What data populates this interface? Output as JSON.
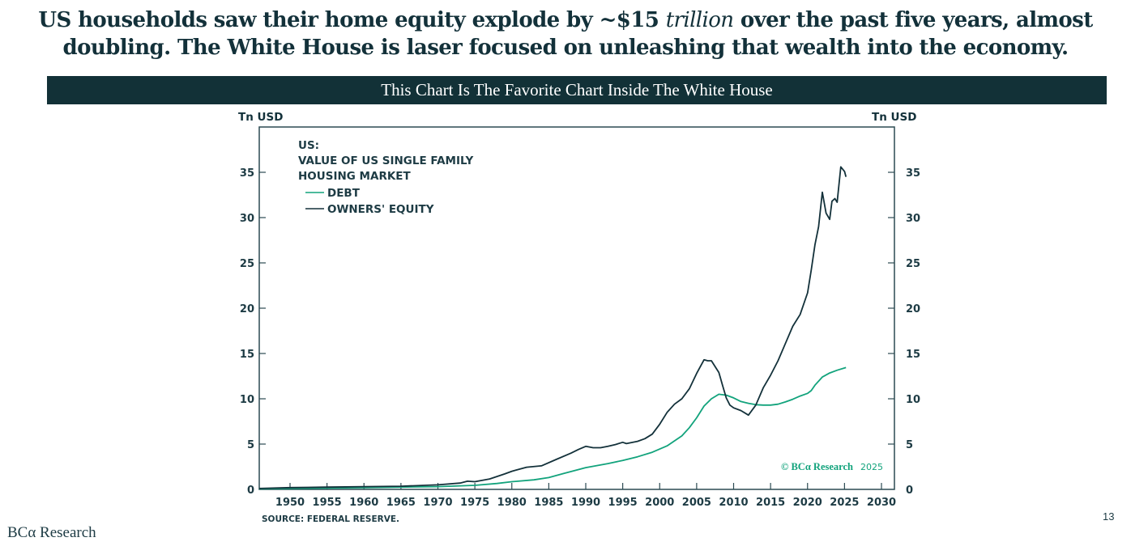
{
  "headline": {
    "line1_pre": "US households saw their home equity explode by ~$15 ",
    "line1_em": "trillion",
    "line1_post": " over the past five years, almost",
    "line2": "doubling. The White House is laser focused on unleashing that wealth into the economy."
  },
  "banner": {
    "title": "This Chart Is The Favorite Chart Inside The White House"
  },
  "footer": {
    "logo": "BCα Research",
    "page_number": "13"
  },
  "colors": {
    "debt": "#12a37c",
    "equity": "#13313a",
    "axis": "#2b4a52",
    "banner": "#123137"
  },
  "chart_data": {
    "type": "line",
    "title": "US: VALUE OF US SINGLE FAMILY HOUSING MARKET",
    "title_lines": [
      "US:",
      "VALUE OF US SINGLE FAMILY",
      "HOUSING MARKET"
    ],
    "ylabel_left": "Tn USD",
    "ylabel_right": "Tn USD",
    "xlabel": "",
    "xlim": [
      1945.8,
      2031.5
    ],
    "ylim": [
      0,
      39.5
    ],
    "x_ticks": [
      1950,
      1955,
      1960,
      1965,
      1970,
      1975,
      1980,
      1985,
      1990,
      1995,
      2000,
      2005,
      2010,
      2015,
      2020,
      2025,
      2030
    ],
    "x_tick_labels": [
      "1950",
      "1955",
      "1960",
      "1965",
      "1970",
      "1975",
      "1980",
      "1985",
      "1990",
      "1995",
      "2000",
      "2005",
      "2010",
      "2015",
      "2020",
      "2025",
      "2030"
    ],
    "y_ticks": [
      0,
      5,
      10,
      15,
      20,
      25,
      30,
      35
    ],
    "y_tick_labels": [
      "0",
      "5",
      "10",
      "15",
      "20",
      "25",
      "30",
      "35"
    ],
    "grid": false,
    "legend_position": "top-left",
    "source": "SOURCE: FEDERAL RESERVE.",
    "copyright": {
      "text": "© BCα Research",
      "year": "2025"
    },
    "series": [
      {
        "name": "DEBT",
        "color": "#12a37c",
        "points": [
          [
            1945.8,
            0.05
          ],
          [
            1950,
            0.1
          ],
          [
            1955,
            0.15
          ],
          [
            1960,
            0.2
          ],
          [
            1965,
            0.25
          ],
          [
            1970,
            0.3
          ],
          [
            1975,
            0.45
          ],
          [
            1978,
            0.65
          ],
          [
            1980,
            0.85
          ],
          [
            1983,
            1.05
          ],
          [
            1985,
            1.3
          ],
          [
            1987,
            1.75
          ],
          [
            1990,
            2.4
          ],
          [
            1993,
            2.85
          ],
          [
            1995,
            3.2
          ],
          [
            1997,
            3.6
          ],
          [
            1999,
            4.1
          ],
          [
            2001,
            4.8
          ],
          [
            2003,
            5.9
          ],
          [
            2004,
            6.8
          ],
          [
            2005,
            7.9
          ],
          [
            2006,
            9.2
          ],
          [
            2007,
            10.0
          ],
          [
            2008,
            10.5
          ],
          [
            2009,
            10.4
          ],
          [
            2010,
            10.1
          ],
          [
            2011,
            9.7
          ],
          [
            2012,
            9.5
          ],
          [
            2013,
            9.35
          ],
          [
            2014,
            9.3
          ],
          [
            2015,
            9.3
          ],
          [
            2016,
            9.4
          ],
          [
            2017,
            9.65
          ],
          [
            2018,
            9.95
          ],
          [
            2019,
            10.3
          ],
          [
            2020,
            10.6
          ],
          [
            2020.5,
            10.9
          ],
          [
            2021,
            11.5
          ],
          [
            2022,
            12.4
          ],
          [
            2023,
            12.85
          ],
          [
            2024,
            13.15
          ],
          [
            2025.2,
            13.45
          ]
        ]
      },
      {
        "name": "OWNERS' EQUITY",
        "color": "#13313a",
        "points": [
          [
            1945.8,
            0.1
          ],
          [
            1950,
            0.2
          ],
          [
            1955,
            0.25
          ],
          [
            1960,
            0.3
          ],
          [
            1965,
            0.35
          ],
          [
            1970,
            0.5
          ],
          [
            1973,
            0.7
          ],
          [
            1974,
            0.9
          ],
          [
            1975,
            0.85
          ],
          [
            1977,
            1.15
          ],
          [
            1979,
            1.7
          ],
          [
            1980,
            2.0
          ],
          [
            1982,
            2.45
          ],
          [
            1984,
            2.6
          ],
          [
            1986,
            3.3
          ],
          [
            1988,
            4.0
          ],
          [
            1989,
            4.4
          ],
          [
            1990,
            4.75
          ],
          [
            1991,
            4.6
          ],
          [
            1992,
            4.6
          ],
          [
            1993,
            4.75
          ],
          [
            1994,
            4.95
          ],
          [
            1995,
            5.2
          ],
          [
            1995.5,
            5.05
          ],
          [
            1997,
            5.3
          ],
          [
            1998,
            5.6
          ],
          [
            1999,
            6.1
          ],
          [
            2000,
            7.2
          ],
          [
            2001,
            8.5
          ],
          [
            2002,
            9.4
          ],
          [
            2003,
            10.0
          ],
          [
            2004,
            11.1
          ],
          [
            2005,
            12.8
          ],
          [
            2006,
            14.3
          ],
          [
            2006.5,
            14.2
          ],
          [
            2007,
            14.2
          ],
          [
            2008,
            12.9
          ],
          [
            2008.5,
            11.5
          ],
          [
            2009,
            10.1
          ],
          [
            2009.5,
            9.3
          ],
          [
            2010,
            9.0
          ],
          [
            2011,
            8.7
          ],
          [
            2012,
            8.2
          ],
          [
            2013,
            9.3
          ],
          [
            2014,
            11.2
          ],
          [
            2015,
            12.6
          ],
          [
            2016,
            14.2
          ],
          [
            2017,
            16.1
          ],
          [
            2018,
            18.0
          ],
          [
            2019,
            19.3
          ],
          [
            2020,
            21.7
          ],
          [
            2020.5,
            24.2
          ],
          [
            2021,
            27.0
          ],
          [
            2021.5,
            29.0
          ],
          [
            2022,
            32.8
          ],
          [
            2022.5,
            30.5
          ],
          [
            2023,
            29.8
          ],
          [
            2023.3,
            31.8
          ],
          [
            2023.7,
            32.1
          ],
          [
            2024,
            31.7
          ],
          [
            2024.5,
            35.6
          ],
          [
            2025,
            35.1
          ],
          [
            2025.2,
            34.5
          ]
        ]
      }
    ]
  }
}
